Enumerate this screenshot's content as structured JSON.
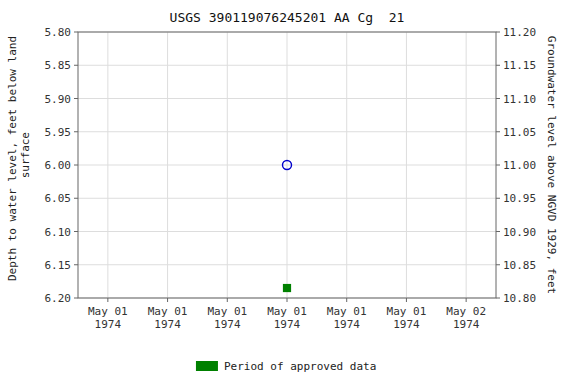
{
  "chart_data": {
    "type": "scatter",
    "title": "USGS 390119076245201 AA Cg  21",
    "ylabel": "Depth to water level, feet below land\n surface",
    "y2label": "Groundwater level above NGVD 1929, feet",
    "categories": [
      "May 01\n1974",
      "May 01\n1974",
      "May 01\n1974",
      "May 01\n1974",
      "May 01\n1974",
      "May 01\n1974",
      "May 02\n1974"
    ],
    "series": [
      {
        "color": "#0000cc",
        "marker": "open-circle",
        "values": [
          null,
          null,
          null,
          6.0,
          null,
          null,
          null
        ]
      },
      {
        "name": "Period of approved data",
        "color": "#008000",
        "marker": "square",
        "values": [
          null,
          null,
          null,
          6.185,
          null,
          null,
          null
        ]
      }
    ],
    "ylim": [
      6.2,
      5.8
    ],
    "yticks": [
      {
        "value": 5.8,
        "label": "5.80"
      },
      {
        "value": 5.85,
        "label": "5.85"
      },
      {
        "value": 5.9,
        "label": "5.90"
      },
      {
        "value": 5.95,
        "label": "5.95"
      },
      {
        "value": 6.0,
        "label": "6.00"
      },
      {
        "value": 6.05,
        "label": "6.05"
      },
      {
        "value": 6.1,
        "label": "6.10"
      },
      {
        "value": 6.15,
        "label": "6.15"
      },
      {
        "value": 6.2,
        "label": "6.20"
      }
    ],
    "y2lim": [
      10.8,
      11.2
    ],
    "y2ticks": [
      {
        "value": 11.2,
        "label": "11.20"
      },
      {
        "value": 11.15,
        "label": "11.15"
      },
      {
        "value": 11.1,
        "label": "11.10"
      },
      {
        "value": 11.05,
        "label": "11.05"
      },
      {
        "value": 11.0,
        "label": "11.00"
      },
      {
        "value": 10.95,
        "label": "10.95"
      },
      {
        "value": 10.9,
        "label": "10.90"
      },
      {
        "value": 10.85,
        "label": "10.85"
      },
      {
        "value": 10.8,
        "label": "10.80"
      }
    ],
    "grid": true,
    "legend": "bottom"
  }
}
